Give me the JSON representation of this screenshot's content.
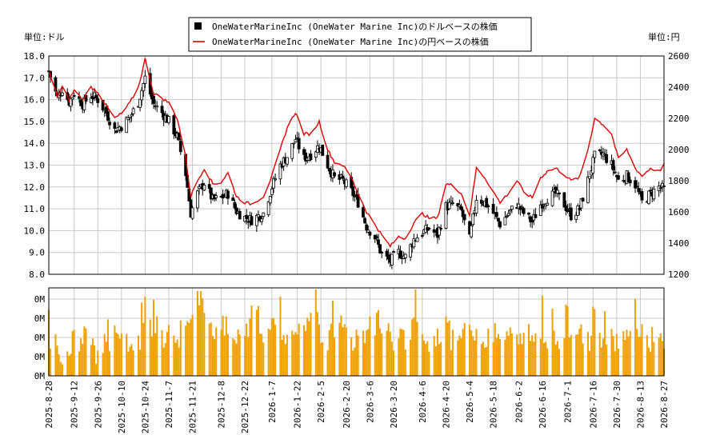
{
  "chart_data": [
    {
      "type": "candlestick+line",
      "legend": [
        {
          "name": "OneWaterMarineInc (OneWater Marine Inc)のドルベースの株価",
          "color": "#000000",
          "marker": "square"
        },
        {
          "name": "OneWaterMarineInc (OneWater Marine Inc)の円ベースの株価",
          "color": "#dd0000",
          "marker": "line"
        }
      ],
      "legend_position": "top",
      "left_unit_label": "単位:ドル",
      "right_unit_label": "単位:円",
      "ylim_left": [
        8.0,
        18.0
      ],
      "ylim_right": [
        1200,
        2600
      ],
      "yticks_left": [
        "8.0",
        "9.0",
        "10.0",
        "11.0",
        "12.0",
        "13.0",
        "14.0",
        "15.0",
        "16.0",
        "17.0",
        "18.0"
      ],
      "yticks_right": [
        "1200",
        "1400",
        "1600",
        "1800",
        "2000",
        "2200",
        "2400",
        "2600"
      ],
      "grid": true,
      "x_start": "2025-08-28",
      "x_end": "2026-08-27",
      "series_usd_close_anchors": [
        [
          "2025-08-28",
          17.3
        ],
        [
          "2025-09-02",
          16.1
        ],
        [
          "2025-09-05",
          16.5
        ],
        [
          "2025-09-09",
          15.9
        ],
        [
          "2025-09-12",
          16.3
        ],
        [
          "2025-09-17",
          15.8
        ],
        [
          "2025-09-22",
          16.2
        ],
        [
          "2025-09-26",
          16.0
        ],
        [
          "2025-10-01",
          15.4
        ],
        [
          "2025-10-06",
          14.6
        ],
        [
          "2025-10-10",
          14.8
        ],
        [
          "2025-10-15",
          15.2
        ],
        [
          "2025-10-20",
          15.9
        ],
        [
          "2025-10-24",
          17.0
        ],
        [
          "2025-10-29",
          15.8
        ],
        [
          "2025-11-03",
          15.4
        ],
        [
          "2025-11-07",
          15.0
        ],
        [
          "2025-11-12",
          14.3
        ],
        [
          "2025-11-17",
          12.6
        ],
        [
          "2025-11-20",
          10.8
        ],
        [
          "2025-11-24",
          11.7
        ],
        [
          "2025-11-28",
          12.2
        ],
        [
          "2025-12-03",
          11.4
        ],
        [
          "2025-12-08",
          11.5
        ],
        [
          "2025-12-12",
          11.7
        ],
        [
          "2025-12-17",
          10.9
        ],
        [
          "2025-12-22",
          10.6
        ],
        [
          "2025-12-26",
          10.5
        ],
        [
          "2026-01-02",
          10.8
        ],
        [
          "2026-01-07",
          12.0
        ],
        [
          "2026-01-12",
          13.0
        ],
        [
          "2026-01-16",
          13.4
        ],
        [
          "2026-01-21",
          14.2
        ],
        [
          "2026-01-26",
          13.3
        ],
        [
          "2026-01-30",
          13.5
        ],
        [
          "2026-02-04",
          13.9
        ],
        [
          "2026-02-09",
          13.0
        ],
        [
          "2026-02-13",
          12.4
        ],
        [
          "2026-02-18",
          12.3
        ],
        [
          "2026-02-23",
          11.8
        ],
        [
          "2026-02-27",
          11.3
        ],
        [
          "2026-03-04",
          10.2
        ],
        [
          "2026-03-09",
          9.7
        ],
        [
          "2026-03-13",
          8.9
        ],
        [
          "2026-03-18",
          8.6
        ],
        [
          "2026-03-23",
          9.0
        ],
        [
          "2026-03-27",
          8.8
        ],
        [
          "2026-04-01",
          9.6
        ],
        [
          "2026-04-06",
          9.9
        ],
        [
          "2026-04-10",
          10.1
        ],
        [
          "2026-04-15",
          9.8
        ],
        [
          "2026-04-20",
          11.1
        ],
        [
          "2026-04-24",
          11.2
        ],
        [
          "2026-04-29",
          10.9
        ],
        [
          "2026-05-04",
          9.6
        ],
        [
          "2026-05-08",
          11.5
        ],
        [
          "2026-05-13",
          11.3
        ],
        [
          "2026-05-18",
          10.8
        ],
        [
          "2026-05-22",
          10.3
        ],
        [
          "2026-05-27",
          10.8
        ],
        [
          "2026-06-01",
          11.2
        ],
        [
          "2026-06-05",
          10.8
        ],
        [
          "2026-06-10",
          10.4
        ],
        [
          "2026-06-15",
          11.2
        ],
        [
          "2026-06-19",
          11.5
        ],
        [
          "2026-06-24",
          11.7
        ],
        [
          "2026-06-29",
          11.2
        ],
        [
          "2026-07-03",
          10.7
        ],
        [
          "2026-07-08",
          11.0
        ],
        [
          "2026-07-13",
          12.3
        ],
        [
          "2026-07-17",
          13.4
        ],
        [
          "2026-07-22",
          13.5
        ],
        [
          "2026-07-27",
          13.0
        ],
        [
          "2026-07-31",
          12.3
        ],
        [
          "2026-08-05",
          12.5
        ],
        [
          "2026-08-10",
          12.1
        ],
        [
          "2026-08-14",
          11.3
        ],
        [
          "2026-08-19",
          11.7
        ],
        [
          "2026-08-24",
          12.0
        ],
        [
          "2026-08-27",
          11.9
        ]
      ],
      "series_jpy_anchors": [
        [
          "2025-08-28",
          2500
        ],
        [
          "2025-09-02",
          2340
        ],
        [
          "2025-09-05",
          2400
        ],
        [
          "2025-09-09",
          2320
        ],
        [
          "2025-09-12",
          2380
        ],
        [
          "2025-09-17",
          2320
        ],
        [
          "2025-09-22",
          2400
        ],
        [
          "2025-09-26",
          2370
        ],
        [
          "2025-10-01",
          2280
        ],
        [
          "2025-10-06",
          2200
        ],
        [
          "2025-10-10",
          2230
        ],
        [
          "2025-10-15",
          2300
        ],
        [
          "2025-10-20",
          2400
        ],
        [
          "2025-10-24",
          2580
        ],
        [
          "2025-10-29",
          2360
        ],
        [
          "2025-11-03",
          2330
        ],
        [
          "2025-11-07",
          2300
        ],
        [
          "2025-11-12",
          2200
        ],
        [
          "2025-11-17",
          1950
        ],
        [
          "2025-11-20",
          1700
        ],
        [
          "2025-11-24",
          1800
        ],
        [
          "2025-11-28",
          1880
        ],
        [
          "2025-12-03",
          1780
        ],
        [
          "2025-12-08",
          1790
        ],
        [
          "2025-12-12",
          1850
        ],
        [
          "2025-12-17",
          1700
        ],
        [
          "2025-12-22",
          1660
        ],
        [
          "2025-12-26",
          1650
        ],
        [
          "2026-01-02",
          1700
        ],
        [
          "2026-01-07",
          1830
        ],
        [
          "2026-01-12",
          2000
        ],
        [
          "2026-01-16",
          2140
        ],
        [
          "2026-01-21",
          2240
        ],
        [
          "2026-01-26",
          2100
        ],
        [
          "2026-01-30",
          2100
        ],
        [
          "2026-02-04",
          2180
        ],
        [
          "2026-02-09",
          2000
        ],
        [
          "2026-02-13",
          1920
        ],
        [
          "2026-02-18",
          1900
        ],
        [
          "2026-02-23",
          1820
        ],
        [
          "2026-02-27",
          1720
        ],
        [
          "2026-03-04",
          1600
        ],
        [
          "2026-03-09",
          1520
        ],
        [
          "2026-03-13",
          1450
        ],
        [
          "2026-03-18",
          1380
        ],
        [
          "2026-03-23",
          1440
        ],
        [
          "2026-03-27",
          1430
        ],
        [
          "2026-04-01",
          1530
        ],
        [
          "2026-04-06",
          1590
        ],
        [
          "2026-04-10",
          1560
        ],
        [
          "2026-04-15",
          1560
        ],
        [
          "2026-04-20",
          1780
        ],
        [
          "2026-04-24",
          1770
        ],
        [
          "2026-04-29",
          1720
        ],
        [
          "2026-05-04",
          1580
        ],
        [
          "2026-05-08",
          1880
        ],
        [
          "2026-05-13",
          1820
        ],
        [
          "2026-05-18",
          1730
        ],
        [
          "2026-05-22",
          1660
        ],
        [
          "2026-05-27",
          1720
        ],
        [
          "2026-06-01",
          1800
        ],
        [
          "2026-06-05",
          1730
        ],
        [
          "2026-06-10",
          1690
        ],
        [
          "2026-06-15",
          1820
        ],
        [
          "2026-06-19",
          1860
        ],
        [
          "2026-06-24",
          1880
        ],
        [
          "2026-06-29",
          1840
        ],
        [
          "2026-07-03",
          1800
        ],
        [
          "2026-07-08",
          1820
        ],
        [
          "2026-07-13",
          2000
        ],
        [
          "2026-07-17",
          2200
        ],
        [
          "2026-07-22",
          2160
        ],
        [
          "2026-07-27",
          2100
        ],
        [
          "2026-07-31",
          1940
        ],
        [
          "2026-08-05",
          2000
        ],
        [
          "2026-08-10",
          1880
        ],
        [
          "2026-08-14",
          1830
        ],
        [
          "2026-08-19",
          1880
        ],
        [
          "2026-08-24",
          1860
        ],
        [
          "2026-08-27",
          1900
        ]
      ],
      "x_tick_labels": [
        "2025-8-28",
        "2025-9-12",
        "2025-9-26",
        "2025-10-10",
        "2025-10-24",
        "2025-11-7",
        "2025-11-21",
        "2025-12-8",
        "2025-12-22",
        "2026-1-7",
        "2026-1-22",
        "2026-2-5",
        "2026-2-20",
        "2026-3-6",
        "2026-3-20",
        "2026-4-6",
        "2026-4-20",
        "2026-5-4",
        "2026-5-18",
        "2026-6-2",
        "2026-6-16",
        "2026-7-1",
        "2026-7-16",
        "2026-7-30",
        "2026-8-13",
        "2026-8-27"
      ]
    },
    {
      "type": "bar",
      "name": "volume",
      "color": "#f0a000",
      "yticks": [
        "0M",
        "0M",
        "0M",
        "0M",
        "0M"
      ],
      "grid": true,
      "note_levels": [
        2,
        0,
        1,
        2,
        3,
        1,
        0,
        2,
        4,
        3,
        2,
        2,
        5,
        3,
        2,
        3,
        1,
        4,
        6,
        8,
        5,
        3,
        4,
        2,
        3,
        4,
        6,
        3,
        5,
        4,
        3,
        2,
        3,
        4,
        5,
        2,
        3,
        4,
        3,
        2,
        3,
        4,
        5,
        4,
        2,
        3,
        1,
        4,
        3,
        2,
        3,
        5,
        2,
        3,
        4,
        3,
        2,
        3,
        2,
        3,
        2,
        3,
        2,
        3,
        2,
        3,
        2,
        3,
        3,
        2,
        3,
        2,
        3,
        2,
        3,
        4,
        3,
        2,
        3,
        2
      ]
    }
  ]
}
